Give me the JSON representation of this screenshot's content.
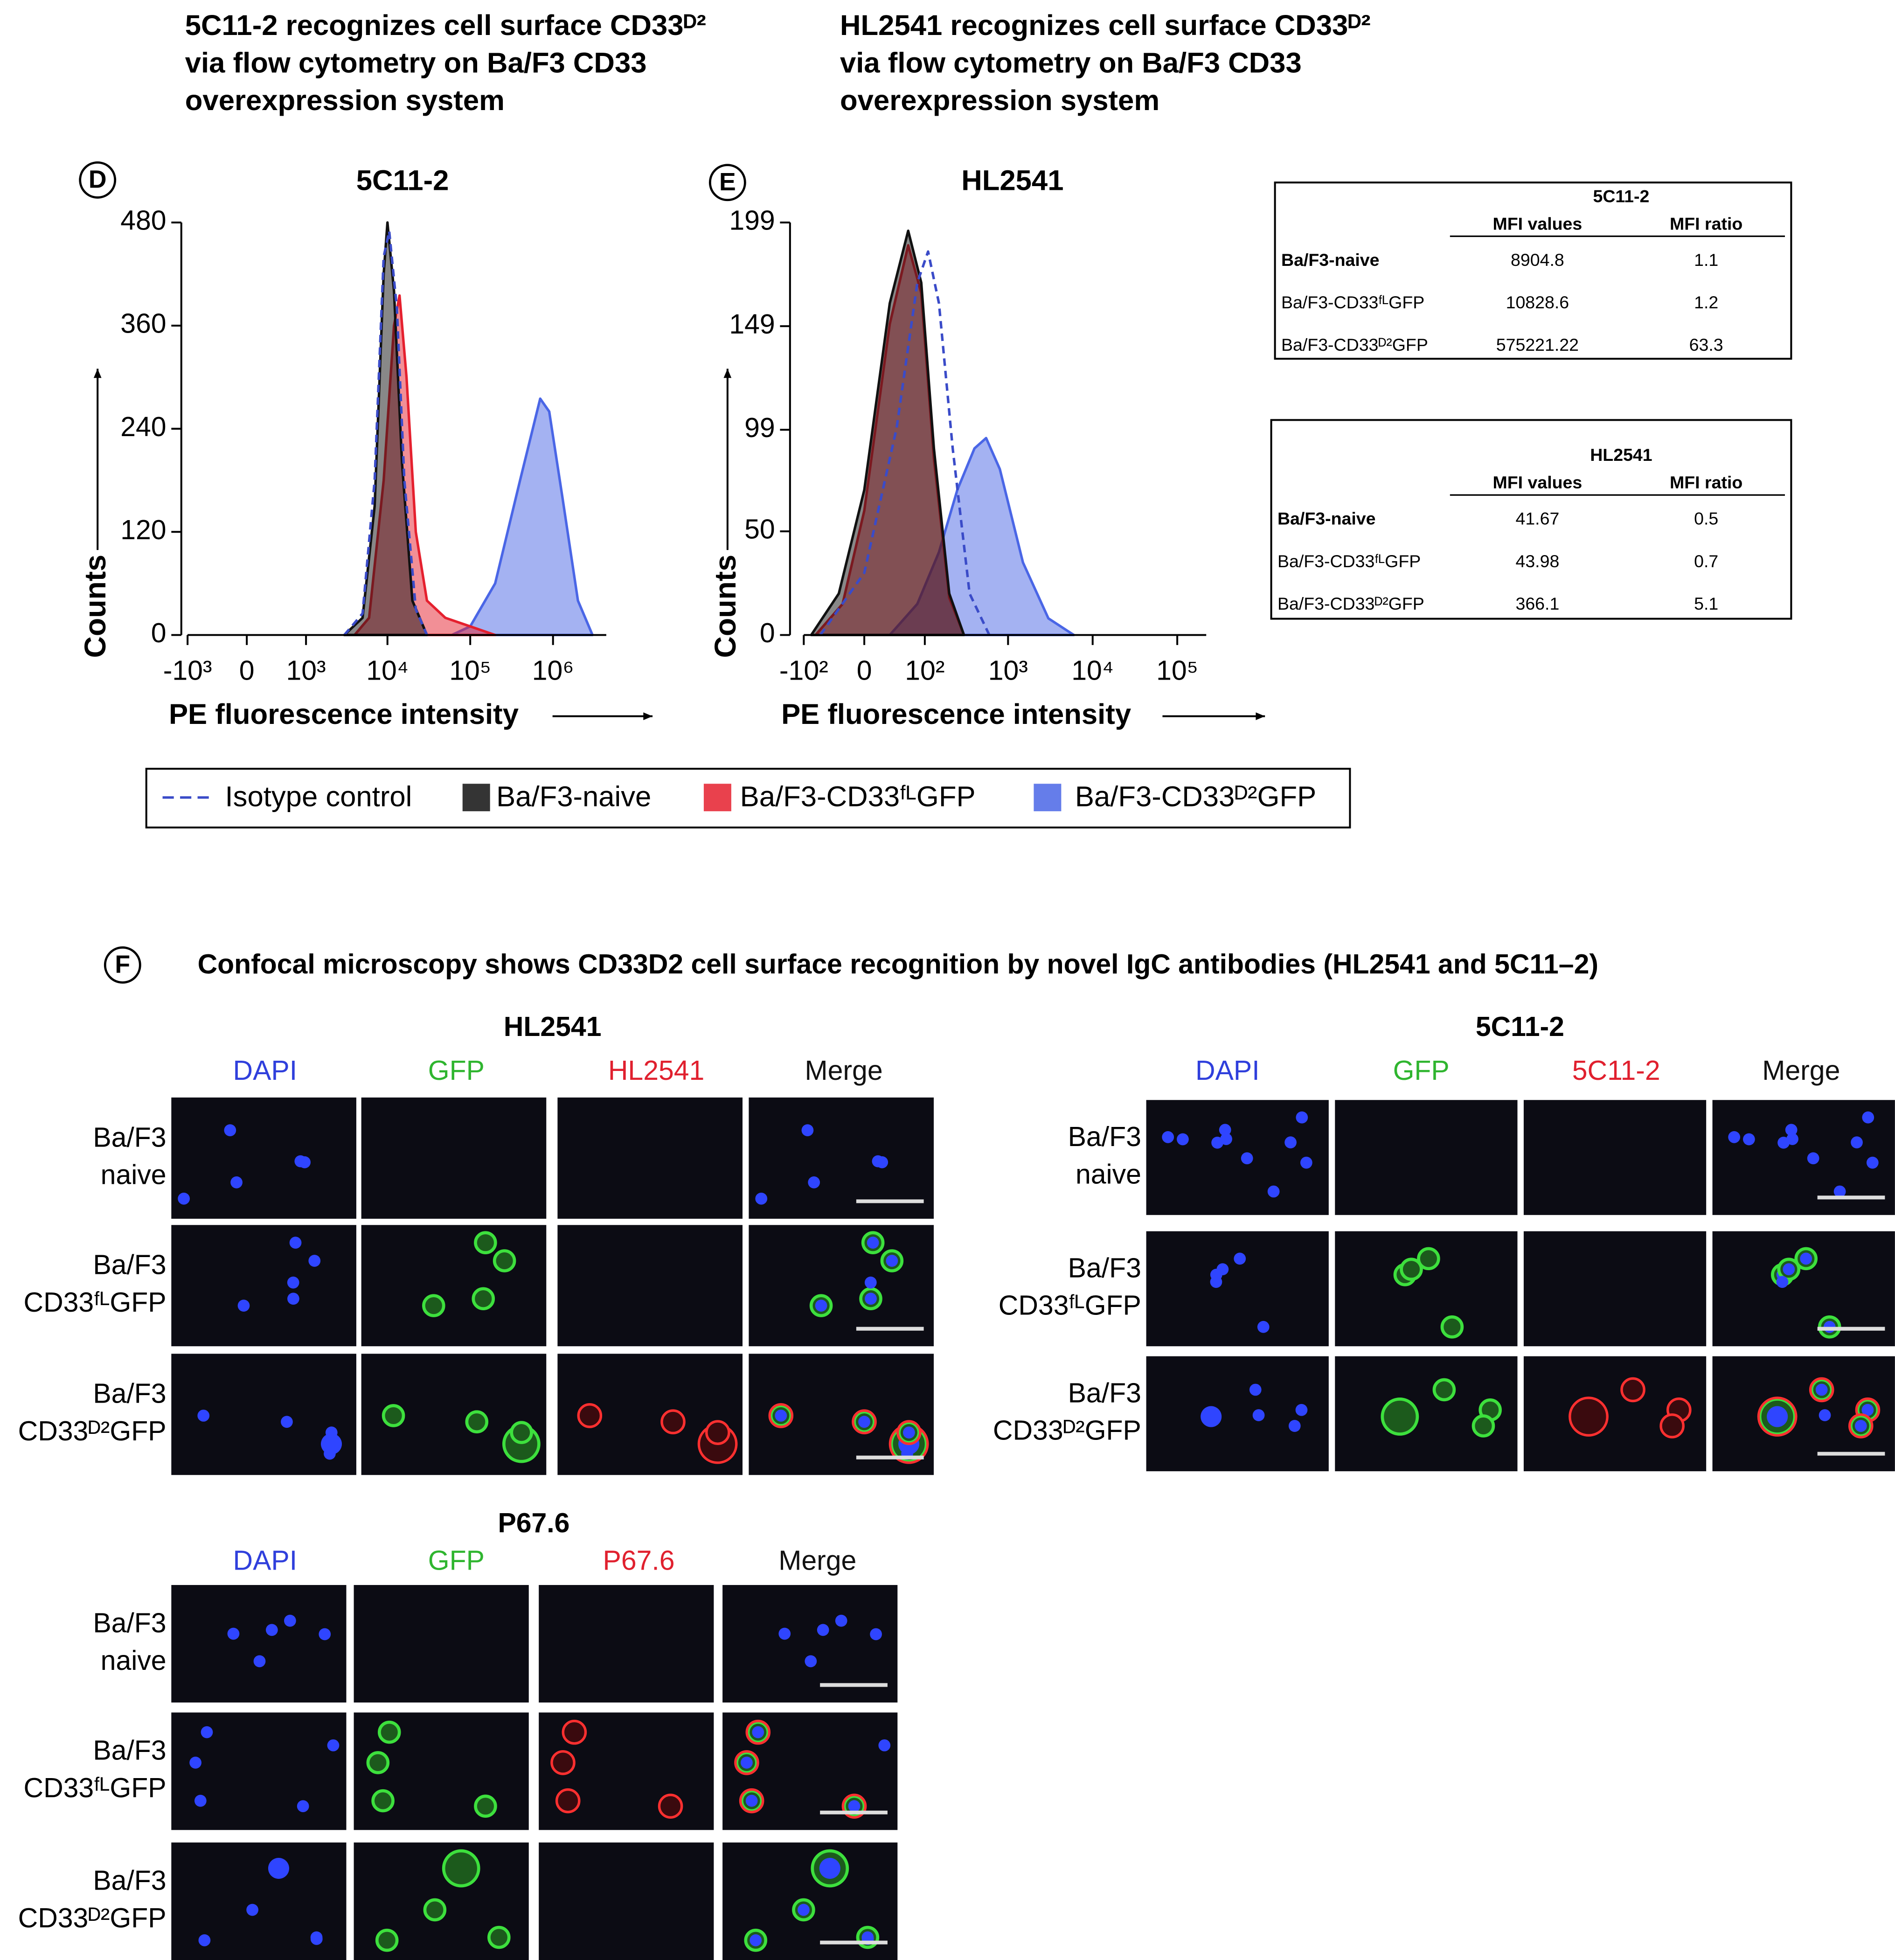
{
  "chart_data": [
    {
      "type": "area",
      "panel": "D",
      "heading": [
        "5C11-2 recognizes cell surface CD33ᴰ²",
        "via flow cytometry on Ba/F3 CD33",
        "overexpression system"
      ],
      "title": "5C11-2",
      "xlabel": "PE fluorescence intensity",
      "ylabel": "Counts",
      "xscale": "biexponential",
      "xlim": [
        -1000,
        4400000
      ],
      "xticks": [
        {
          "value": -1000,
          "label": "-10³"
        },
        0,
        {
          "value": 1000,
          "label": "10³"
        },
        {
          "value": 10000,
          "label": "10⁴"
        },
        {
          "value": 100000,
          "label": "10⁵"
        },
        {
          "value": 1000000,
          "label": "10⁶"
        }
      ],
      "ylim": [
        0,
        480
      ],
      "yticks": [
        0,
        120,
        240,
        360,
        480
      ],
      "series": [
        {
          "name": "Isotype control",
          "color": "#3a4bc8",
          "fill": false,
          "line_style": "dashed",
          "x": [
            3000,
            5000,
            7000,
            9000,
            10500,
            13000,
            16000,
            22000,
            30000
          ],
          "values": [
            0,
            25,
            180,
            440,
            470,
            380,
            180,
            30,
            0
          ]
        },
        {
          "name": "Ba/F3-naive",
          "color": "#111111",
          "fill": true,
          "line_style": "solid",
          "x": [
            3000,
            5000,
            7000,
            9000,
            10000,
            12000,
            15000,
            20000,
            30000
          ],
          "values": [
            0,
            20,
            150,
            420,
            480,
            400,
            200,
            40,
            0
          ]
        },
        {
          "name": "Ba/F3-CD33ᶠᴸGFP",
          "color": "#e5202e",
          "fill": true,
          "line_style": "solid",
          "x": [
            4000,
            6000,
            9000,
            12000,
            14000,
            17000,
            22000,
            30000,
            50000,
            100000,
            200000
          ],
          "values": [
            0,
            20,
            180,
            360,
            395,
            300,
            120,
            40,
            20,
            10,
            0
          ]
        },
        {
          "name": "Ba/F3-CD33ᴰ²GFP",
          "color": "#4a66e6",
          "fill": true,
          "line_style": "solid",
          "x": [
            60000,
            100000,
            200000,
            400000,
            700000,
            900000,
            1300000,
            2000000,
            3000000
          ],
          "values": [
            0,
            10,
            60,
            180,
            275,
            260,
            160,
            40,
            0
          ]
        }
      ]
    },
    {
      "type": "area",
      "panel": "E",
      "heading": [
        "HL2541 recognizes cell surface CD33ᴰ²",
        "via flow cytometry on Ba/F3 CD33",
        "overexpression system"
      ],
      "title": "HL2541",
      "xlabel": "PE fluorescence intensity",
      "ylabel": "Counts",
      "xscale": "biexponential",
      "xlim": [
        -100,
        220000
      ],
      "xticks": [
        {
          "value": -100,
          "label": "-10²"
        },
        0,
        {
          "value": 100,
          "label": "10²"
        },
        {
          "value": 1000,
          "label": "10³"
        },
        {
          "value": 10000,
          "label": "10⁴"
        },
        {
          "value": 100000,
          "label": "10⁵"
        }
      ],
      "ylim": [
        0,
        199
      ],
      "yticks": [
        0,
        50,
        99,
        149,
        199
      ],
      "series": [
        {
          "name": "Isotype control",
          "color": "#3a4bc8",
          "fill": false,
          "line_style": "dashed",
          "x": [
            -60,
            0,
            40,
            80,
            110,
            150,
            220,
            350,
            600
          ],
          "values": [
            0,
            30,
            100,
            170,
            185,
            160,
            90,
            20,
            0
          ]
        },
        {
          "name": "Ba/F3-naive",
          "color": "#111111",
          "fill": true,
          "line_style": "solid",
          "x": [
            -80,
            -30,
            0,
            30,
            60,
            90,
            130,
            200,
            300
          ],
          "values": [
            0,
            20,
            70,
            160,
            195,
            170,
            90,
            20,
            0
          ]
        },
        {
          "name": "Ba/F3-CD33ᶠᴸGFP",
          "color": "#e5202e",
          "fill": true,
          "line_style": "solid",
          "x": [
            -70,
            -25,
            0,
            30,
            60,
            90,
            130,
            200,
            300
          ],
          "values": [
            0,
            15,
            60,
            150,
            188,
            165,
            85,
            18,
            0
          ]
        },
        {
          "name": "Ba/F3-CD33ᴰ²GFP",
          "color": "#4a66e6",
          "fill": true,
          "line_style": "solid",
          "x": [
            30,
            80,
            150,
            250,
            400,
            550,
            800,
            1500,
            3000,
            6000
          ],
          "values": [
            0,
            15,
            40,
            70,
            90,
            95,
            80,
            35,
            8,
            0
          ]
        }
      ]
    }
  ],
  "tables": [
    {
      "title": "5C11-2",
      "columns": [
        "MFI values",
        "MFI ratio"
      ],
      "rows": [
        {
          "label": "Ba/F3-naive",
          "values": [
            8904.8,
            1.1
          ]
        },
        {
          "label": "Ba/F3-CD33ᶠᴸGFP",
          "values": [
            10828.6,
            1.2
          ]
        },
        {
          "label": "Ba/F3-CD33ᴰ²GFP",
          "values": [
            575221.22,
            63.3
          ]
        }
      ]
    },
    {
      "title": "HL2541",
      "columns": [
        "MFI values",
        "MFI ratio"
      ],
      "rows": [
        {
          "label": "Ba/F3-naive",
          "values": [
            41.67,
            0.5
          ]
        },
        {
          "label": "Ba/F3-CD33ᶠᴸGFP",
          "values": [
            43.98,
            0.7
          ]
        },
        {
          "label": "Ba/F3-CD33ᴰ²GFP",
          "values": [
            366.1,
            5.1
          ]
        }
      ]
    }
  ],
  "panel_f": {
    "label": "F",
    "heading": "Confocal microscopy shows CD33D2 cell surface recognition by novel IgC antibodies (HL2541 and 5C11–2)",
    "groups": [
      {
        "title": "HL2541",
        "columns": [
          "DAPI",
          "GFP",
          "HL2541",
          "Merge"
        ],
        "rows": [
          [
            "Ba/F3",
            "naive"
          ],
          [
            "Ba/F3",
            "CD33ᶠᴸGFP"
          ],
          [
            "Ba/F3",
            "CD33ᴰ²GFP"
          ]
        ]
      },
      {
        "title": "5C11-2",
        "columns": [
          "DAPI",
          "GFP",
          "5C11-2",
          "Merge"
        ],
        "rows": [
          [
            "Ba/F3",
            "naive"
          ],
          [
            "Ba/F3",
            "CD33ᶠᴸGFP"
          ],
          [
            "Ba/F3",
            "CD33ᴰ²GFP"
          ]
        ]
      },
      {
        "title": "P67.6",
        "columns": [
          "DAPI",
          "GFP",
          "P67.6",
          "Merge"
        ],
        "rows": [
          [
            "Ba/F3",
            "naive"
          ],
          [
            "Ba/F3",
            "CD33ᶠᴸGFP"
          ],
          [
            "Ba/F3",
            "CD33ᴰ²GFP"
          ]
        ]
      }
    ]
  }
}
